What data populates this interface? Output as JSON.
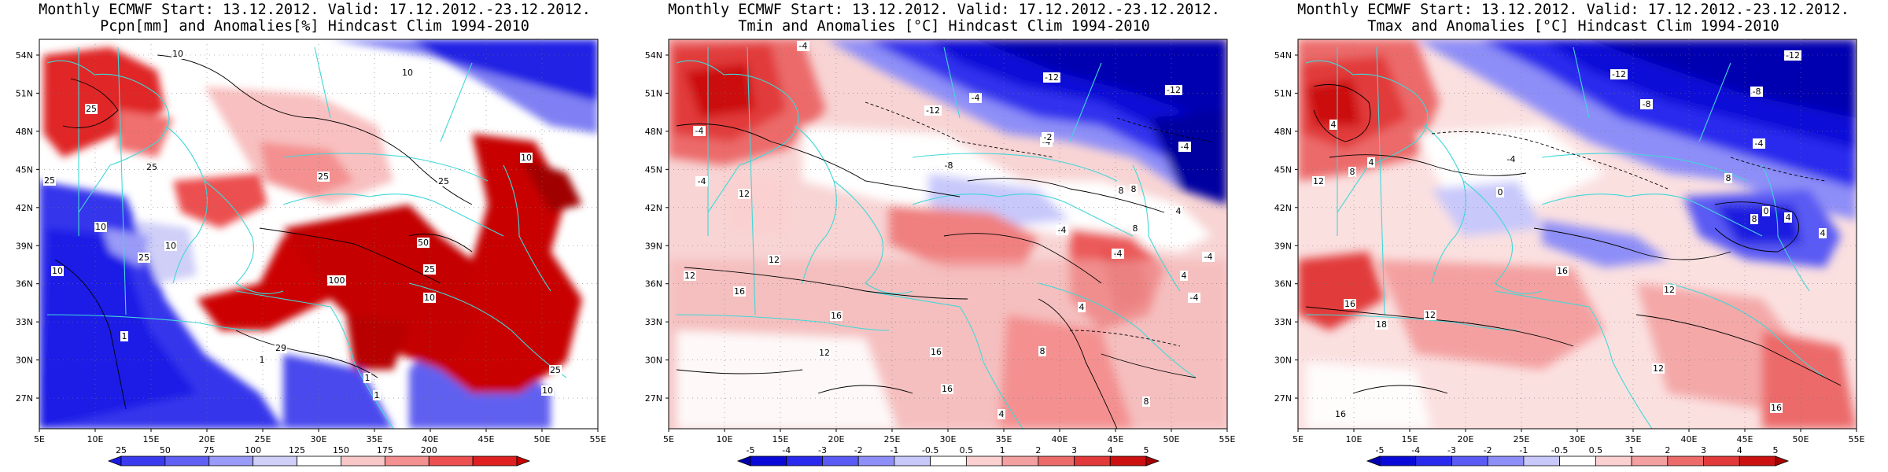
{
  "panels": [
    {
      "title_line1": "Monthly ECMWF Start: 13.12.2012. Valid: 17.12.2012.-23.12.2012.",
      "title_line2": "Pcpn[mm] and Anomalies[%] Hindcast Clim 1994-2010",
      "variable": "precipitation",
      "colorbar": {
        "labels": [
          "25",
          "50",
          "75",
          "100",
          "125",
          "150",
          "175",
          "200"
        ],
        "colors": [
          "#1a1ae6",
          "#3a3aef",
          "#6060f4",
          "#9a9af8",
          "#cfcff8",
          "#ffffff",
          "#f8c8c8",
          "#f49090",
          "#ec5050",
          "#e02020",
          "#c80000"
        ]
      },
      "contour_labels": [
        "10",
        "25",
        "25",
        "25",
        "10",
        "10",
        "25",
        "50",
        "25",
        "10",
        "100",
        "25",
        "10",
        "1",
        "29",
        "25",
        "10",
        "1",
        "1",
        "10",
        "10",
        "25",
        "1"
      ]
    },
    {
      "title_line1": "Monthly ECMWF Start: 13.12.2012. Valid: 17.12.2012.-23.12.2012.",
      "title_line2": "Tmin and Anomalies [°C] Hindcast Clim 1994-2010",
      "variable": "tmin",
      "colorbar": {
        "labels": [
          "-5",
          "-4",
          "-3",
          "-2",
          "-1",
          "-0.5",
          "0.5",
          "1",
          "2",
          "3",
          "4",
          "5"
        ],
        "colors": [
          "#0000b0",
          "#0a0ad8",
          "#2a2aee",
          "#5a5af4",
          "#8e8ef8",
          "#c8c8fb",
          "#ffffff",
          "#fbd0d0",
          "#f4a0a0",
          "#ec6a6a",
          "#e23a3a",
          "#cc1010",
          "#a80000"
        ]
      },
      "contour_labels": [
        "-4",
        "-12",
        "-12",
        "-12",
        "-4",
        "-8",
        "-4",
        "-2",
        "-4",
        "-4",
        "12",
        "12",
        "8",
        "-4",
        "4",
        "8",
        "-4",
        "12",
        "16",
        "16",
        "12",
        "16",
        "-4",
        "8",
        "4",
        "-4",
        "8",
        "4",
        "4",
        "8",
        "16",
        "-4"
      ]
    },
    {
      "title_line1": "Monthly ECMWF Start: 13.12.2012. Valid: 17.12.2012.-23.12.2012.",
      "title_line2": "Tmax and Anomalies [°C] Hindcast Clim 1994-2010",
      "variable": "tmax",
      "colorbar": {
        "labels": [
          "-5",
          "-4",
          "-3",
          "-2",
          "-1",
          "-0.5",
          "0.5",
          "1",
          "2",
          "3",
          "4",
          "5"
        ],
        "colors": [
          "#0000b0",
          "#0a0ad8",
          "#2a2aee",
          "#5a5af4",
          "#8e8ef8",
          "#c8c8fb",
          "#ffffff",
          "#fbd0d0",
          "#f4a0a0",
          "#ec6a6a",
          "#e23a3a",
          "#cc1010",
          "#a80000"
        ]
      },
      "contour_labels": [
        "-12",
        "-12",
        "-8",
        "-8",
        "-4",
        "-4",
        "0",
        "4",
        "8",
        "12",
        "4",
        "8",
        "12",
        "16",
        "16",
        "12",
        "18",
        "16",
        "4",
        "4",
        "0",
        "8",
        "12",
        "16"
      ]
    }
  ],
  "axes": {
    "lat_labels": [
      "54N",
      "51N",
      "48N",
      "45N",
      "42N",
      "39N",
      "36N",
      "33N",
      "30N",
      "27N"
    ],
    "lon_labels": [
      "5E",
      "10E",
      "15E",
      "20E",
      "25E",
      "30E",
      "35E",
      "40E",
      "45E",
      "50E",
      "55E"
    ]
  }
}
